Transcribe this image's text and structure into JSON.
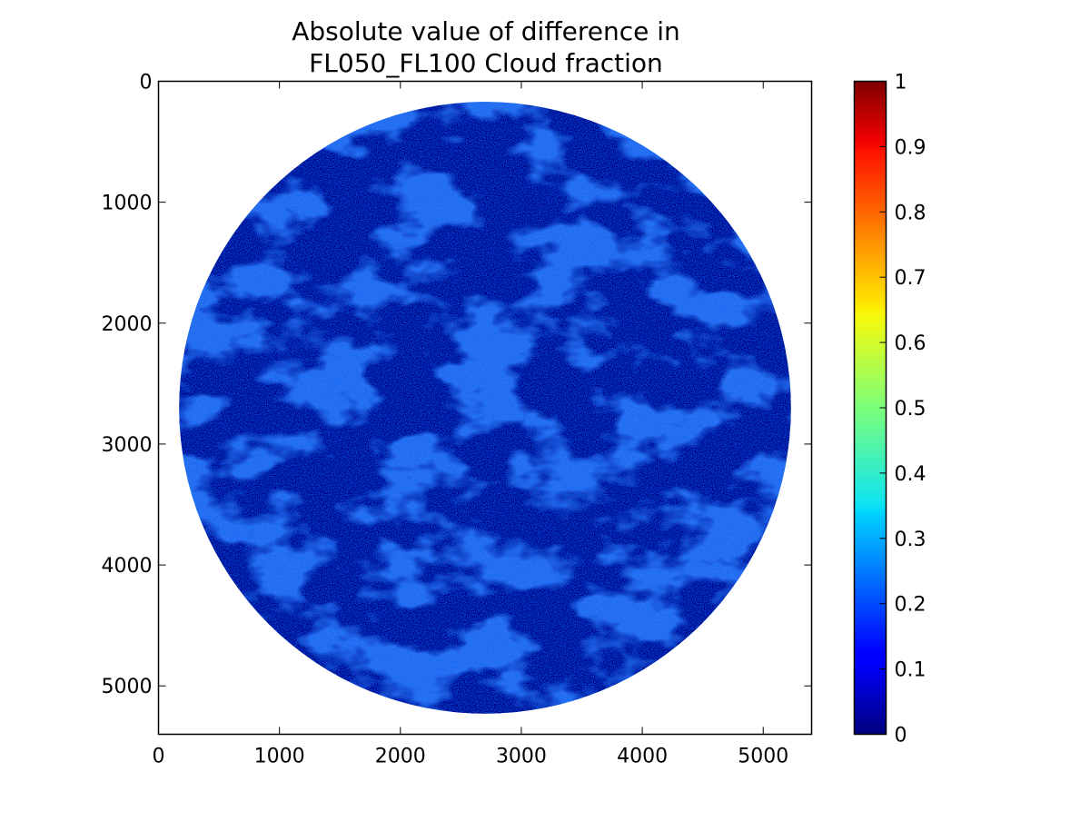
{
  "chart_data": {
    "type": "heatmap",
    "title": "Absolute value of difference in\nFL050_FL100 Cloud fraction",
    "title_lines": [
      "Absolute value of difference in",
      "FL050_FL100 Cloud fraction"
    ],
    "xlabel": "",
    "ylabel": "",
    "xlim": [
      0,
      5400
    ],
    "ylim": [
      5400,
      0
    ],
    "x_ticks": [
      0,
      1000,
      2000,
      3000,
      4000,
      5000
    ],
    "y_ticks": [
      0,
      1000,
      2000,
      3000,
      4000,
      5000
    ],
    "x_tick_labels": [
      "0",
      "1000",
      "2000",
      "3000",
      "4000",
      "5000"
    ],
    "y_tick_labels": [
      "0",
      "1000",
      "2000",
      "3000",
      "4000",
      "5000"
    ],
    "disk": {
      "center_x": 2700,
      "center_y": 2700,
      "radius": 2530
    },
    "colorbar": {
      "colormap": "jet",
      "range": [
        0,
        1
      ],
      "ticks": [
        0,
        0.1,
        0.2,
        0.3,
        0.4,
        0.5,
        0.6,
        0.7,
        0.8,
        0.9,
        1
      ],
      "tick_labels": [
        "0",
        "0.1",
        "0.2",
        "0.3",
        "0.4",
        "0.5",
        "0.6",
        "0.7",
        "0.8",
        "0.9",
        "1"
      ]
    },
    "grid": false,
    "dominant_value_range": [
      0,
      0.15
    ],
    "colors": {
      "background_value": "#00007f",
      "cloud_speckle": "#0020ff"
    }
  }
}
